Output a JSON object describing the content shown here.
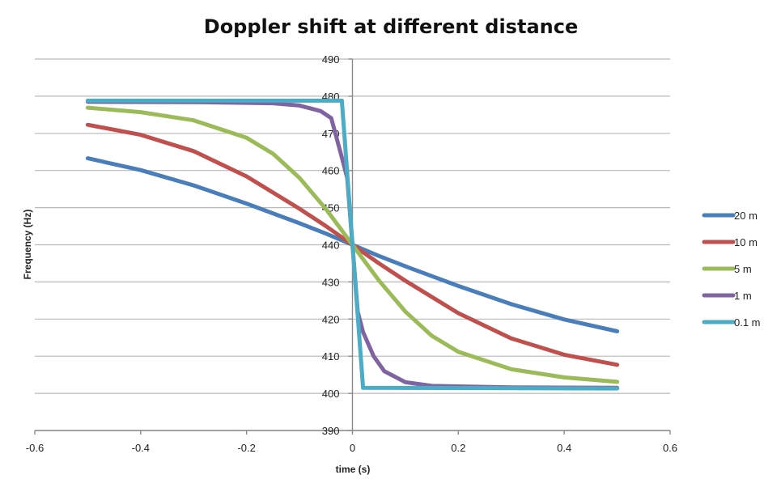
{
  "chart_data": {
    "type": "line",
    "title": "Doppler shift at different distance",
    "xlabel": "time (s)",
    "ylabel": "Frequency (Hz)",
    "xlim": [
      -0.6,
      0.6
    ],
    "ylim": [
      390,
      490
    ],
    "x_ticks": [
      "-0.6",
      "-0.4",
      "-0.2",
      "0",
      "0.2",
      "0.4",
      "0.6"
    ],
    "y_ticks": [
      "390",
      "400",
      "410",
      "420",
      "430",
      "440",
      "450",
      "460",
      "470",
      "480",
      "490"
    ],
    "grid": "horizontal",
    "legend_position": "right",
    "series": [
      {
        "name": "20 m",
        "color": "#4a7ebb",
        "x": [
          -0.5,
          -0.4,
          -0.3,
          -0.2,
          -0.1,
          -0.05,
          0,
          0.05,
          0.1,
          0.2,
          0.3,
          0.4,
          0.5
        ],
        "values": [
          463.3,
          460.1,
          456.0,
          451.1,
          445.8,
          443.0,
          440.0,
          437.0,
          434.2,
          428.9,
          424.0,
          419.9,
          416.7
        ]
      },
      {
        "name": "10 m",
        "color": "#c0504d",
        "x": [
          -0.5,
          -0.4,
          -0.3,
          -0.2,
          -0.1,
          -0.05,
          0,
          0.05,
          0.1,
          0.2,
          0.3,
          0.4,
          0.5
        ],
        "values": [
          472.3,
          469.6,
          465.2,
          458.4,
          449.7,
          445.0,
          440.0,
          435.0,
          430.3,
          421.6,
          414.8,
          410.4,
          407.7
        ]
      },
      {
        "name": "5 m",
        "color": "#9bbb59",
        "x": [
          -0.5,
          -0.4,
          -0.3,
          -0.2,
          -0.15,
          -0.1,
          -0.05,
          0,
          0.05,
          0.1,
          0.15,
          0.2,
          0.3,
          0.4,
          0.5
        ],
        "values": [
          476.9,
          475.7,
          473.5,
          468.8,
          464.5,
          458.0,
          449.6,
          440.0,
          430.4,
          422.0,
          415.5,
          411.2,
          406.5,
          404.3,
          403.1
        ]
      },
      {
        "name": "1 m",
        "color": "#8064a2",
        "x": [
          -0.5,
          -0.3,
          -0.15,
          -0.1,
          -0.06,
          -0.04,
          -0.02,
          -0.01,
          0,
          0.01,
          0.02,
          0.04,
          0.06,
          0.1,
          0.15,
          0.3,
          0.5
        ],
        "values": [
          478.5,
          478.4,
          478.1,
          477.5,
          476.0,
          474.1,
          463.5,
          458.0,
          440.0,
          422.0,
          416.5,
          410.0,
          406.0,
          403.0,
          402.0,
          401.6,
          401.5
        ]
      },
      {
        "name": "0.1 m",
        "color": "#4bacc6",
        "x": [
          -0.5,
          -0.02,
          0.02,
          0.5
        ],
        "values": [
          478.8,
          478.8,
          401.5,
          401.3
        ]
      }
    ]
  }
}
